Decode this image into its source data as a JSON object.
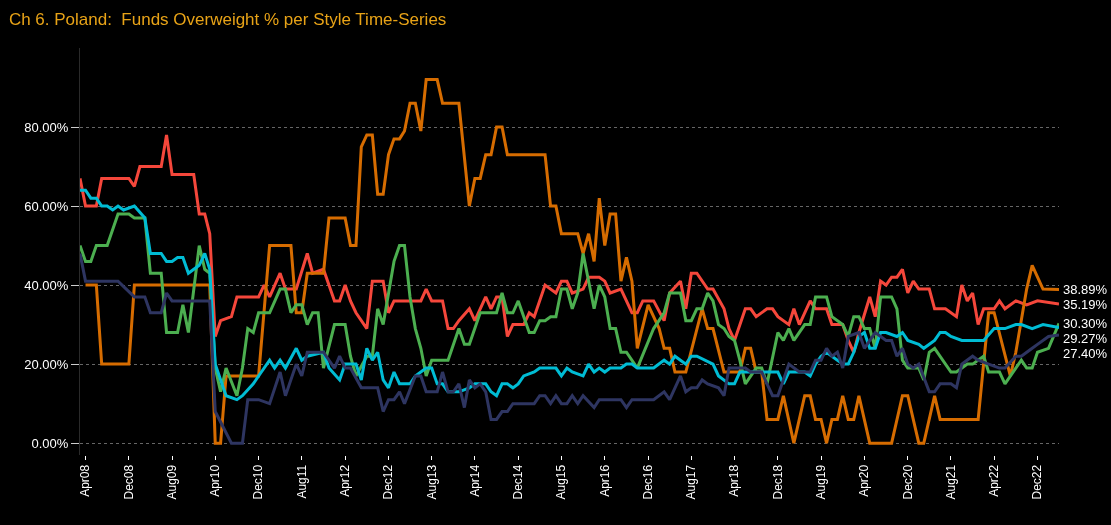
{
  "chart_data": {
    "type": "line",
    "title": "Ch 6. Poland:  Funds Overweight % per Style Time-Series",
    "xlim": [
      "2008-03",
      "2023-04"
    ],
    "xticks": [
      {
        "value": "2008-04",
        "label": "Apr08"
      },
      {
        "value": "2008-12",
        "label": "Dec08"
      },
      {
        "value": "2009-08",
        "label": "Aug09"
      },
      {
        "value": "2010-04",
        "label": "Apr10"
      },
      {
        "value": "2010-12",
        "label": "Dec10"
      },
      {
        "value": "2011-08",
        "label": "Aug11"
      },
      {
        "value": "2012-04",
        "label": "Apr12"
      },
      {
        "value": "2012-12",
        "label": "Dec12"
      },
      {
        "value": "2013-08",
        "label": "Aug13"
      },
      {
        "value": "2014-04",
        "label": "Apr14"
      },
      {
        "value": "2014-12",
        "label": "Dec14"
      },
      {
        "value": "2015-08",
        "label": "Aug15"
      },
      {
        "value": "2016-04",
        "label": "Apr16"
      },
      {
        "value": "2016-12",
        "label": "Dec16"
      },
      {
        "value": "2017-08",
        "label": "Aug17"
      },
      {
        "value": "2018-04",
        "label": "Apr18"
      },
      {
        "value": "2018-12",
        "label": "Dec18"
      },
      {
        "value": "2019-08",
        "label": "Aug19"
      },
      {
        "value": "2020-04",
        "label": "Apr20"
      },
      {
        "value": "2020-12",
        "label": "Dec20"
      },
      {
        "value": "2021-08",
        "label": "Aug21"
      },
      {
        "value": "2022-04",
        "label": "Apr22"
      },
      {
        "value": "2022-12",
        "label": "Dec22"
      }
    ],
    "ylim": [
      -3,
      100
    ],
    "yticks": [
      {
        "value": 0,
        "label": "0.00%"
      },
      {
        "value": 20,
        "label": "20.00%"
      },
      {
        "value": 40,
        "label": "40.00%"
      },
      {
        "value": 60,
        "label": "60.00%"
      },
      {
        "value": 80,
        "label": "80.00%"
      }
    ],
    "grid": "y",
    "marker": "none",
    "line_style": "solid",
    "series": [
      {
        "color": "#f5473b",
        "x": [
          "2008-03",
          "2008-04",
          "2008-06",
          "2008-07",
          "2008-12",
          "2009-01",
          "2009-02",
          "2009-06",
          "2009-07",
          "2009-08",
          "2009-12",
          "2010-01",
          "2010-02",
          "2010-03",
          "2010-04",
          "2010-05",
          "2010-07",
          "2010-08",
          "2010-12",
          "2011-01",
          "2011-02",
          "2011-04",
          "2011-05",
          "2011-07",
          "2011-09",
          "2011-10",
          "2011-12",
          "2012-02",
          "2012-03",
          "2012-04",
          "2012-05",
          "2012-06",
          "2012-08",
          "2012-09",
          "2012-11",
          "2012-12",
          "2013-01",
          "2013-06",
          "2013-07",
          "2013-08",
          "2013-10",
          "2013-11",
          "2013-12",
          "2014-01",
          "2014-03",
          "2014-04",
          "2014-06",
          "2014-07",
          "2014-08",
          "2014-09",
          "2014-10",
          "2014-11",
          "2015-01",
          "2015-02",
          "2015-03",
          "2015-05",
          "2015-07",
          "2015-08",
          "2015-09",
          "2015-10",
          "2015-12",
          "2016-01",
          "2016-03",
          "2016-04",
          "2016-05",
          "2016-07",
          "2016-09",
          "2016-10",
          "2016-11",
          "2017-01",
          "2017-03",
          "2017-04",
          "2017-06",
          "2017-07",
          "2017-08",
          "2017-09",
          "2017-11",
          "2017-12",
          "2018-02",
          "2018-03",
          "2018-04",
          "2018-06",
          "2018-07",
          "2018-08",
          "2018-10",
          "2018-11",
          "2018-12",
          "2019-02",
          "2019-03",
          "2019-04",
          "2019-06",
          "2019-07",
          "2019-09",
          "2019-10",
          "2019-12",
          "2020-01",
          "2020-02",
          "2020-03",
          "2020-05",
          "2020-06",
          "2020-07",
          "2020-08",
          "2020-09",
          "2020-10",
          "2020-11",
          "2020-12",
          "2021-01",
          "2021-02",
          "2021-04",
          "2021-05",
          "2021-07",
          "2021-09",
          "2021-10",
          "2021-11",
          "2021-12",
          "2022-01",
          "2022-02",
          "2022-04",
          "2022-05",
          "2022-06",
          "2022-08",
          "2022-10",
          "2022-12",
          "2023-04"
        ],
        "values": [
          67,
          60,
          60,
          67,
          67,
          65,
          70,
          70,
          78,
          68,
          68,
          58,
          58,
          53,
          27,
          31,
          32,
          37,
          37,
          40,
          37,
          43,
          39,
          39,
          48,
          43,
          44,
          36,
          36,
          40,
          36,
          33,
          29,
          41,
          41,
          33,
          36,
          36,
          39,
          36,
          36,
          29,
          29,
          31,
          34,
          31,
          37,
          34,
          37,
          37,
          27,
          30,
          30,
          33,
          32,
          40,
          38,
          41,
          41,
          38,
          39,
          42,
          42,
          41,
          38,
          39,
          33,
          33,
          36,
          36,
          31,
          38,
          41,
          34,
          43,
          43,
          39,
          39,
          34,
          29,
          26,
          34,
          34,
          32,
          34,
          34,
          32,
          30,
          34,
          30,
          36,
          34,
          34,
          30,
          30,
          26,
          23,
          28,
          37,
          32,
          41,
          40,
          42,
          42,
          44,
          38,
          41,
          39,
          39,
          34,
          34,
          32,
          40,
          36,
          38,
          30,
          34,
          34,
          36,
          34,
          36,
          35,
          36,
          35.19
        ]
      },
      {
        "color": "#d66c00",
        "x": [
          "2008-04",
          "2008-06",
          "2008-07",
          "2008-12",
          "2009-01",
          "2010-03",
          "2010-04",
          "2010-05",
          "2010-06",
          "2010-12",
          "2011-02",
          "2011-06",
          "2011-07",
          "2011-08",
          "2011-09",
          "2011-12",
          "2012-01",
          "2012-04",
          "2012-05",
          "2012-06",
          "2012-07",
          "2012-08",
          "2012-09",
          "2012-10",
          "2012-11",
          "2012-12",
          "2013-01",
          "2013-02",
          "2013-03",
          "2013-04",
          "2013-05",
          "2013-06",
          "2013-07",
          "2013-09",
          "2013-10",
          "2014-01",
          "2014-03",
          "2014-04",
          "2014-05",
          "2014-06",
          "2014-07",
          "2014-08",
          "2014-09",
          "2014-10",
          "2015-05",
          "2015-06",
          "2015-07",
          "2015-08",
          "2015-11",
          "2015-12",
          "2016-01",
          "2016-02",
          "2016-03",
          "2016-04",
          "2016-05",
          "2016-06",
          "2016-07",
          "2016-08",
          "2016-09",
          "2016-10",
          "2016-12",
          "2017-02",
          "2017-03",
          "2017-04",
          "2017-05",
          "2017-07",
          "2017-10",
          "2017-11",
          "2017-12",
          "2018-02",
          "2018-05",
          "2018-06",
          "2018-07",
          "2018-08",
          "2018-09",
          "2018-10",
          "2018-12",
          "2019-01",
          "2019-03",
          "2019-05",
          "2019-06",
          "2019-07",
          "2019-08",
          "2019-09",
          "2019-10",
          "2019-11",
          "2019-12",
          "2020-01",
          "2020-02",
          "2020-03",
          "2020-05",
          "2020-09",
          "2020-11",
          "2020-12",
          "2021-02",
          "2021-03",
          "2021-05",
          "2021-06",
          "2022-01",
          "2022-03",
          "2022-04",
          "2022-07",
          "2022-08",
          "2022-10",
          "2022-11",
          "2023-01",
          "2023-04"
        ],
        "values": [
          40,
          40,
          20,
          20,
          40,
          40,
          0,
          0,
          17,
          17,
          50,
          50,
          33,
          33,
          43,
          43,
          57,
          57,
          50,
          50,
          75,
          78,
          78,
          63,
          63,
          73,
          77,
          77,
          79,
          86,
          86,
          79,
          92,
          92,
          86,
          86,
          60,
          67,
          67,
          73,
          73,
          80,
          80,
          73,
          73,
          60,
          60,
          53,
          53,
          48,
          53,
          46,
          62,
          50,
          58,
          58,
          41,
          47,
          41,
          24,
          35,
          29,
          24,
          24,
          18,
          18,
          34,
          29,
          29,
          18,
          18,
          24,
          24,
          18,
          18,
          6,
          6,
          12,
          0,
          12,
          12,
          6,
          6,
          0,
          6,
          6,
          12,
          6,
          6,
          12,
          0,
          0,
          12,
          12,
          0,
          0,
          12,
          6,
          6,
          33,
          33,
          17,
          23,
          39,
          45,
          39,
          38.89
        ]
      },
      {
        "color": "#4caf50",
        "x": [
          "2008-03",
          "2008-04",
          "2008-05",
          "2008-06",
          "2008-08",
          "2008-10",
          "2008-12",
          "2009-01",
          "2009-03",
          "2009-04",
          "2009-06",
          "2009-07",
          "2009-09",
          "2009-10",
          "2009-11",
          "2010-01",
          "2010-02",
          "2010-03",
          "2010-04",
          "2010-05",
          "2010-06",
          "2010-08",
          "2010-09",
          "2010-10",
          "2010-11",
          "2010-12",
          "2011-02",
          "2011-04",
          "2011-05",
          "2011-06",
          "2011-07",
          "2011-08",
          "2011-09",
          "2011-10",
          "2011-11",
          "2011-12",
          "2012-02",
          "2012-04",
          "2012-05",
          "2012-06",
          "2012-08",
          "2012-09",
          "2012-10",
          "2012-11",
          "2013-01",
          "2013-02",
          "2013-03",
          "2013-04",
          "2013-05",
          "2013-06",
          "2013-07",
          "2013-08",
          "2013-11",
          "2014-01",
          "2014-02",
          "2014-03",
          "2014-05",
          "2014-08",
          "2014-09",
          "2014-10",
          "2014-11",
          "2014-12",
          "2015-02",
          "2015-03",
          "2015-04",
          "2015-05",
          "2015-06",
          "2015-07",
          "2015-08",
          "2015-09",
          "2015-10",
          "2015-11",
          "2015-12",
          "2016-02",
          "2016-03",
          "2016-04",
          "2016-05",
          "2016-06",
          "2016-07",
          "2016-08",
          "2016-10",
          "2017-01",
          "2017-03",
          "2017-04",
          "2017-06",
          "2017-07",
          "2017-08",
          "2017-09",
          "2017-10",
          "2017-11",
          "2017-12",
          "2018-01",
          "2018-02",
          "2018-03",
          "2018-04",
          "2018-05",
          "2018-06",
          "2018-08",
          "2018-09",
          "2018-10",
          "2018-12",
          "2019-01",
          "2019-02",
          "2019-03",
          "2019-05",
          "2019-06",
          "2019-07",
          "2019-09",
          "2019-10",
          "2019-12",
          "2020-01",
          "2020-02",
          "2020-03",
          "2020-04",
          "2020-05",
          "2020-06",
          "2020-07",
          "2020-09",
          "2020-10",
          "2020-11",
          "2020-12",
          "2021-02",
          "2021-03",
          "2021-04",
          "2021-05",
          "2021-08",
          "2021-09",
          "2021-11",
          "2021-12",
          "2022-02",
          "2022-03",
          "2022-05",
          "2022-06",
          "2022-08",
          "2022-09",
          "2022-10",
          "2022-11",
          "2022-12",
          "2023-02",
          "2023-04"
        ],
        "values": [
          50,
          46,
          46,
          50,
          50,
          58,
          58,
          57,
          57,
          43,
          43,
          28,
          28,
          35,
          28,
          50,
          44,
          43,
          19,
          13,
          19,
          12,
          19,
          29,
          28,
          33,
          33,
          39,
          39,
          33,
          35,
          35,
          30,
          33,
          33,
          19,
          30,
          30,
          22,
          17,
          22,
          22,
          34,
          30,
          46,
          50,
          50,
          37,
          29,
          24,
          17,
          21,
          21,
          29,
          25,
          25,
          33,
          33,
          38,
          33,
          33,
          36,
          28,
          28,
          31,
          31,
          32,
          32,
          39,
          39,
          34,
          38,
          48,
          34,
          40,
          37,
          29,
          29,
          23,
          23,
          19,
          29,
          33,
          38,
          38,
          31,
          31,
          34,
          34,
          38,
          36,
          30,
          29,
          27,
          26,
          21,
          15,
          19,
          19,
          15,
          28,
          26,
          29,
          26,
          30,
          30,
          37,
          37,
          32,
          30,
          27,
          32,
          32,
          29,
          29,
          24,
          37,
          37,
          34,
          21,
          19,
          19,
          16,
          23,
          24,
          18,
          18,
          20,
          20,
          22,
          18,
          18,
          15,
          19,
          21,
          19,
          19,
          23,
          24,
          30.3
        ]
      },
      {
        "color": "#00bcd4",
        "x": [
          "2008-03",
          "2008-04",
          "2008-05",
          "2008-06",
          "2008-07",
          "2008-08",
          "2008-09",
          "2008-10",
          "2008-11",
          "2009-01",
          "2009-03",
          "2009-04",
          "2009-06",
          "2009-07",
          "2009-08",
          "2009-09",
          "2009-10",
          "2009-11",
          "2010-01",
          "2010-02",
          "2010-03",
          "2010-04",
          "2010-06",
          "2010-08",
          "2010-09",
          "2010-11",
          "2010-12",
          "2011-02",
          "2011-03",
          "2011-04",
          "2011-05",
          "2011-07",
          "2011-08",
          "2011-09",
          "2011-12",
          "2012-01",
          "2012-03",
          "2012-04",
          "2012-06",
          "2012-07",
          "2012-08",
          "2012-09",
          "2012-10",
          "2012-11",
          "2012-12",
          "2013-01",
          "2013-02",
          "2013-04",
          "2013-05",
          "2013-07",
          "2013-08",
          "2013-09",
          "2013-10",
          "2013-11",
          "2014-01",
          "2014-03",
          "2014-04",
          "2014-06",
          "2014-07",
          "2014-08",
          "2014-09",
          "2014-10",
          "2014-11",
          "2014-12",
          "2015-01",
          "2015-03",
          "2015-04",
          "2015-06",
          "2015-07",
          "2015-08",
          "2015-09",
          "2015-10",
          "2015-12",
          "2016-01",
          "2016-02",
          "2016-03",
          "2016-04",
          "2016-05",
          "2016-07",
          "2016-08",
          "2016-09",
          "2016-10",
          "2016-12",
          "2017-01",
          "2017-03",
          "2017-04",
          "2017-05",
          "2017-07",
          "2017-08",
          "2017-09",
          "2017-12",
          "2018-01",
          "2018-03",
          "2018-04",
          "2018-05",
          "2018-10",
          "2018-12",
          "2019-01",
          "2019-02",
          "2019-05",
          "2019-06",
          "2019-07",
          "2019-08",
          "2019-09",
          "2019-10",
          "2019-12",
          "2020-01",
          "2020-02",
          "2020-03",
          "2020-04",
          "2020-05",
          "2020-06",
          "2020-07",
          "2020-08",
          "2020-10",
          "2020-11",
          "2020-12",
          "2021-02",
          "2021-03",
          "2021-05",
          "2021-06",
          "2021-07",
          "2021-08",
          "2021-10",
          "2021-12",
          "2022-02",
          "2022-04",
          "2022-06",
          "2022-08",
          "2022-09",
          "2022-11",
          "2023-01",
          "2023-04"
        ],
        "values": [
          64,
          64,
          62,
          62,
          60,
          60,
          59,
          60,
          59,
          60,
          57,
          48,
          48,
          46,
          46,
          47,
          47,
          43,
          45,
          48,
          44,
          20,
          12,
          11,
          12,
          15,
          17,
          21,
          19,
          21,
          19,
          24,
          21,
          22,
          23,
          19,
          16,
          20,
          20,
          16,
          24,
          21,
          23,
          16,
          14,
          18,
          15,
          15,
          17,
          19,
          19,
          15,
          15,
          13,
          13,
          14,
          15,
          15,
          13,
          12,
          15,
          15,
          14,
          15,
          17,
          18,
          19,
          19,
          19,
          17,
          19,
          18,
          17,
          20,
          18,
          19,
          18,
          19,
          19,
          20,
          20,
          19,
          19,
          19,
          21,
          20,
          22,
          20,
          22,
          22,
          20,
          17,
          15,
          15,
          18,
          18,
          18,
          15,
          18,
          18,
          17,
          20,
          22,
          23,
          22,
          20,
          20,
          23,
          27,
          28,
          24,
          24,
          28,
          28,
          27,
          28,
          26,
          25,
          24,
          26,
          28,
          28,
          27,
          26,
          26,
          26,
          29,
          29,
          30,
          30,
          29,
          30,
          29.27
        ]
      },
      {
        "color": "#2e3561",
        "x": [
          "2008-03",
          "2008-04",
          "2008-10",
          "2009-01",
          "2009-03",
          "2009-04",
          "2009-06",
          "2009-07",
          "2009-08",
          "2010-03",
          "2010-04",
          "2010-07",
          "2010-09",
          "2010-10",
          "2010-12",
          "2011-02",
          "2011-04",
          "2011-05",
          "2011-07",
          "2011-08",
          "2011-09",
          "2011-12",
          "2012-02",
          "2012-03",
          "2012-04",
          "2012-05",
          "2012-07",
          "2012-10",
          "2012-11",
          "2012-12",
          "2013-01",
          "2013-02",
          "2013-03",
          "2013-05",
          "2013-06",
          "2013-07",
          "2013-09",
          "2013-10",
          "2013-11",
          "2013-12",
          "2014-01",
          "2014-02",
          "2014-03",
          "2014-04",
          "2014-05",
          "2014-06",
          "2014-07",
          "2014-08",
          "2014-09",
          "2014-10",
          "2014-11",
          "2015-03",
          "2015-04",
          "2015-05",
          "2015-06",
          "2015-07",
          "2015-08",
          "2015-09",
          "2015-10",
          "2015-11",
          "2015-12",
          "2016-02",
          "2016-03",
          "2016-07",
          "2016-08",
          "2016-09",
          "2017-01",
          "2017-03",
          "2017-04",
          "2017-06",
          "2017-07",
          "2017-08",
          "2017-09",
          "2017-10",
          "2017-11",
          "2018-01",
          "2018-02",
          "2018-03",
          "2018-06",
          "2018-07",
          "2018-09",
          "2018-10",
          "2018-11",
          "2018-12",
          "2019-02",
          "2019-04",
          "2019-06",
          "2019-07",
          "2019-08",
          "2019-09",
          "2019-10",
          "2019-11",
          "2019-12",
          "2020-01",
          "2020-03",
          "2020-04",
          "2020-06",
          "2020-08",
          "2020-09",
          "2020-10",
          "2020-11",
          "2020-12",
          "2021-01",
          "2021-02",
          "2021-04",
          "2021-05",
          "2021-06",
          "2021-08",
          "2021-09",
          "2021-10",
          "2021-12",
          "2022-01",
          "2022-03",
          "2022-05",
          "2022-06",
          "2022-08",
          "2022-09",
          "2022-11",
          "2022-12",
          "2023-02",
          "2023-04"
        ],
        "values": [
          48,
          41,
          41,
          37,
          37,
          33,
          33,
          38,
          36,
          36,
          8,
          0,
          0,
          11,
          11,
          10,
          18,
          12,
          20,
          17,
          23,
          23,
          19,
          22,
          19,
          19,
          14,
          14,
          8,
          11,
          11,
          13,
          10,
          17,
          17,
          13,
          13,
          18,
          13,
          13,
          15,
          9,
          16,
          14,
          15,
          13,
          6,
          6,
          8,
          8,
          10,
          10,
          12,
          12,
          10,
          12,
          10,
          10,
          12,
          10,
          12,
          9,
          11,
          11,
          9,
          11,
          11,
          13,
          11,
          17,
          13,
          14,
          14,
          16,
          15,
          14,
          12,
          19,
          19,
          18,
          18,
          15,
          12,
          12,
          20,
          18,
          18,
          21,
          21,
          24,
          22,
          23,
          19,
          27,
          28,
          24,
          28,
          26,
          26,
          22,
          24,
          20,
          19,
          20,
          13,
          13,
          15,
          15,
          14,
          20,
          22,
          21,
          20,
          19,
          19,
          22,
          22,
          24,
          25,
          27,
          27.4
        ]
      }
    ],
    "annotations": [
      {
        "text": "38.89%",
        "x": "2023-04",
        "y": 38.89
      },
      {
        "text": "35.19%",
        "x": "2023-04",
        "y": 35.19
      },
      {
        "text": "30.30%",
        "x": "2023-04",
        "y": 30.3
      },
      {
        "text": "29.27%",
        "x": "2023-04",
        "y": 29.27
      },
      {
        "text": "27.40%",
        "x": "2023-04",
        "y": 27.4
      }
    ]
  }
}
